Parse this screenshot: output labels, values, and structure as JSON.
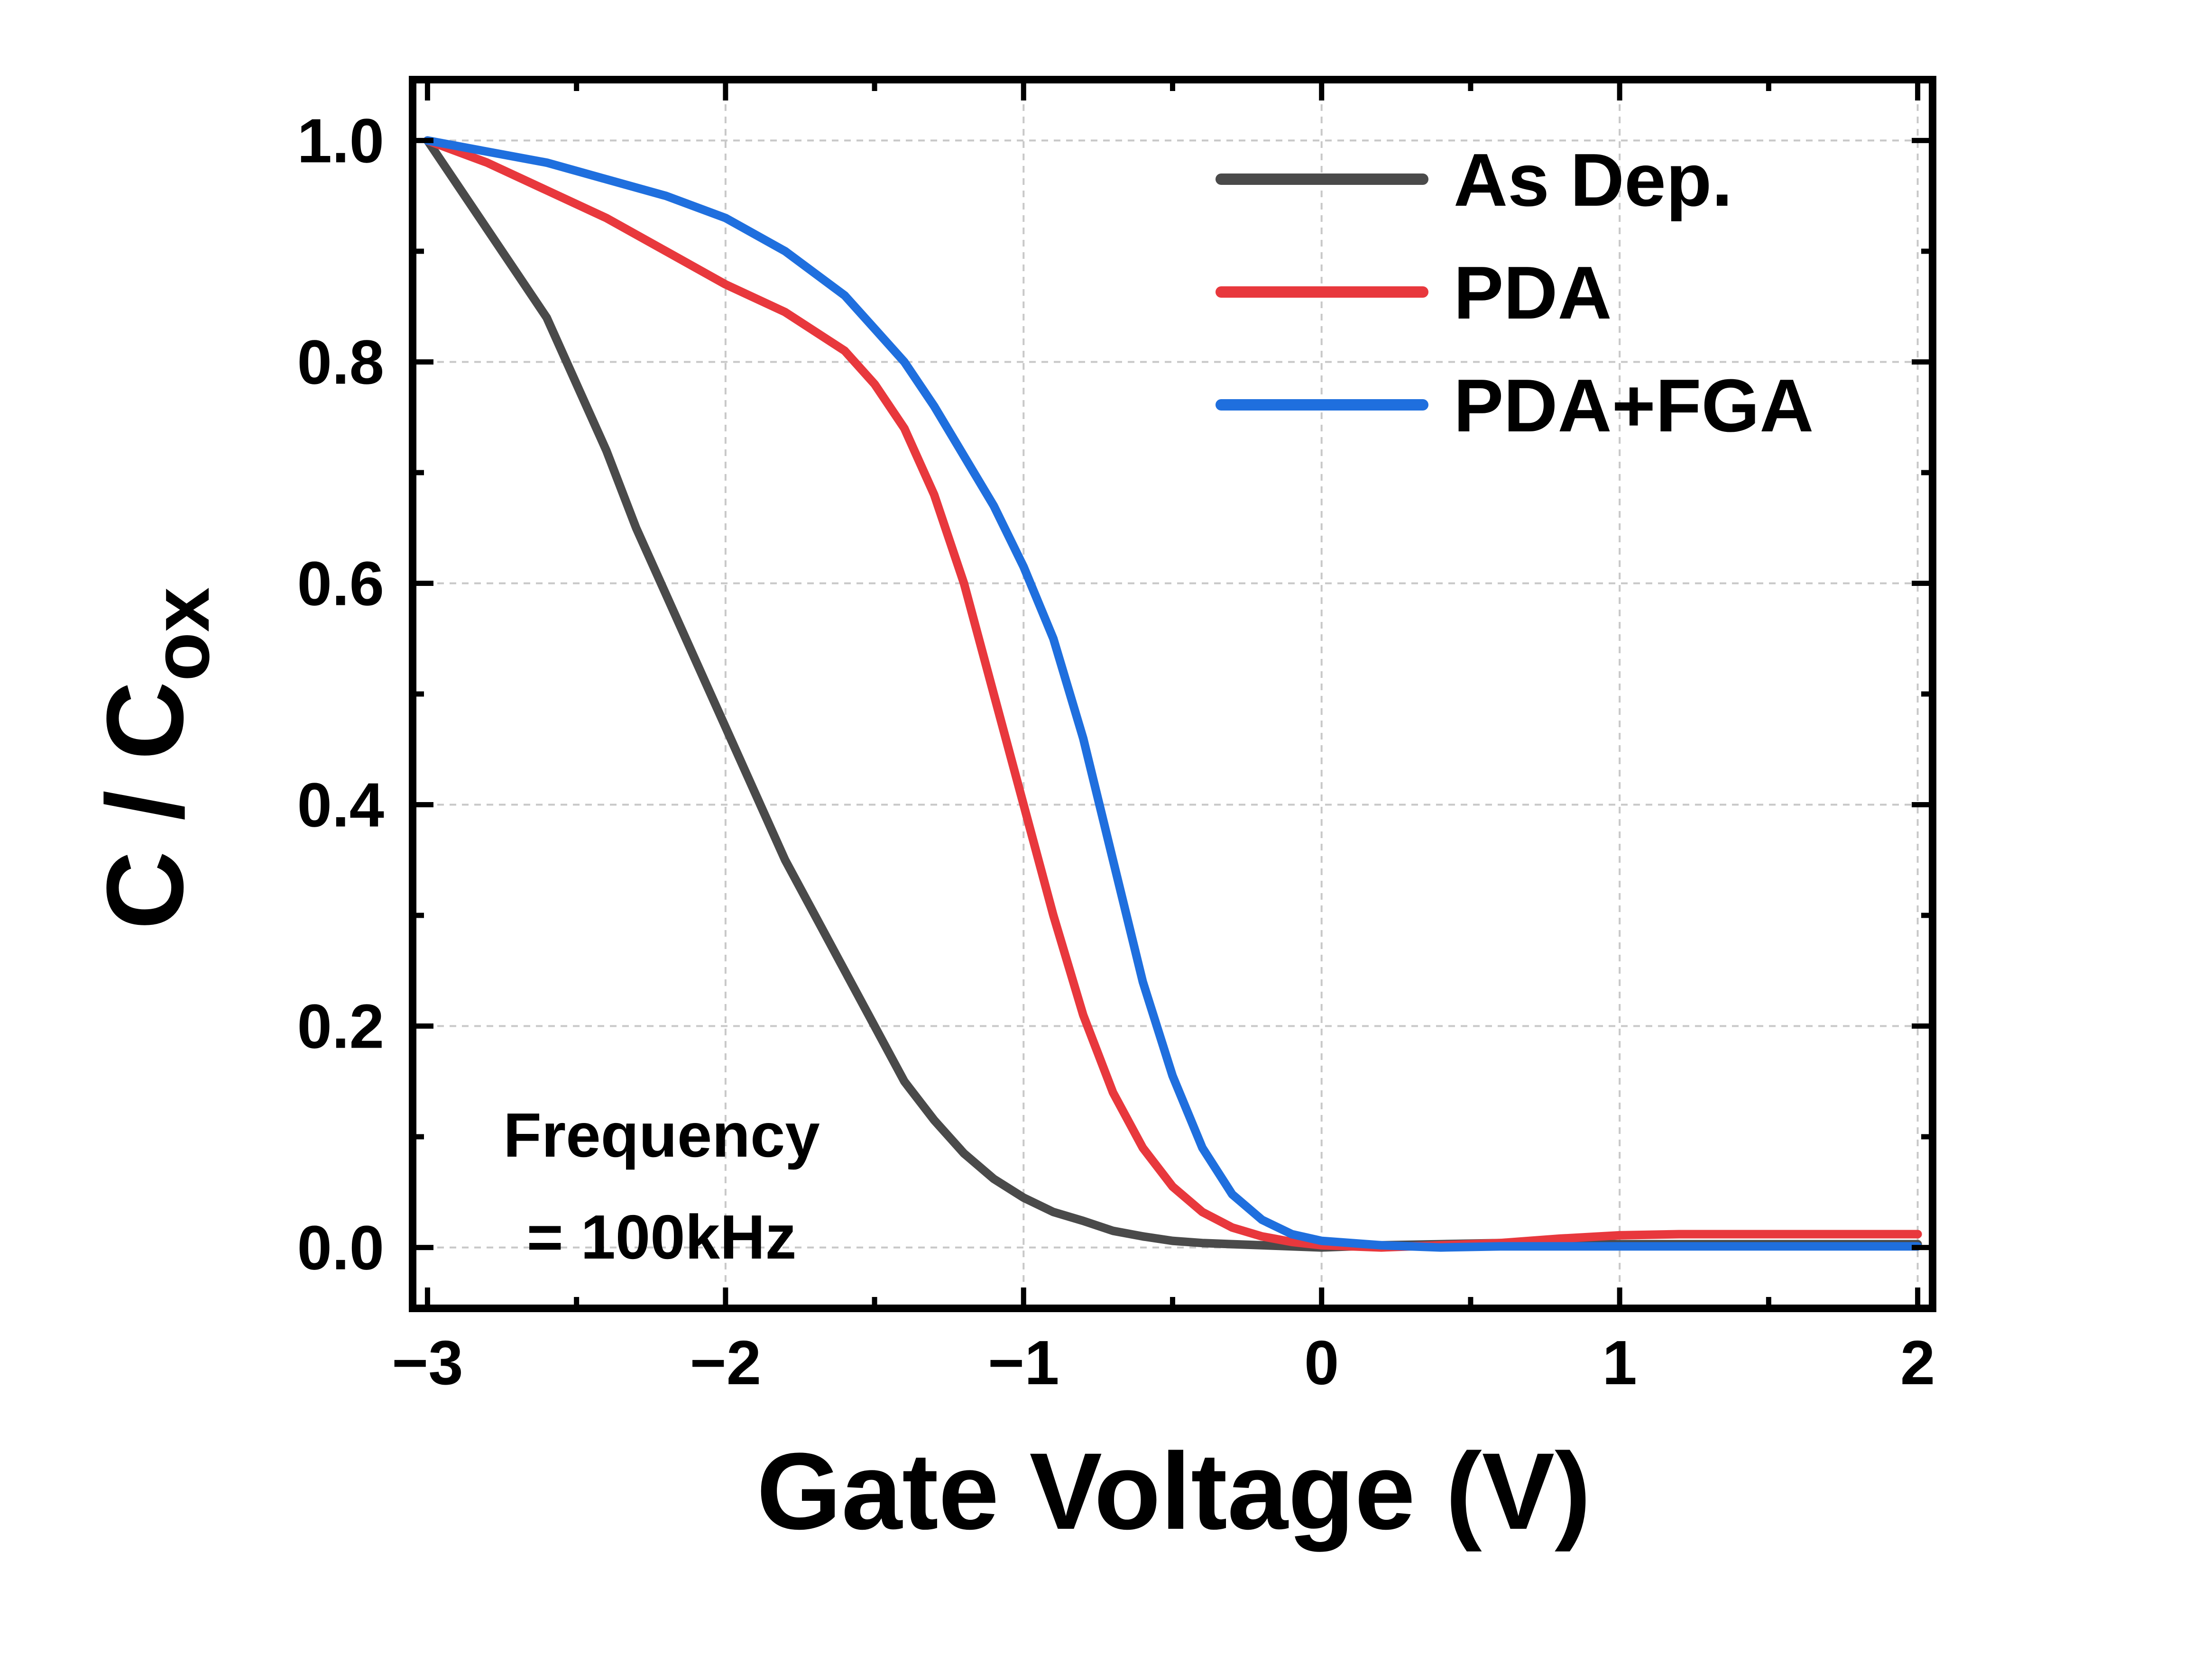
{
  "chart_data": {
    "type": "line",
    "xlabel": "Gate Voltage (V)",
    "ylabel": {
      "main": "C / C",
      "sub": "ox"
    },
    "xlim": [
      -3.05,
      2.05
    ],
    "ylim": [
      -0.055,
      1.055
    ],
    "xticks": [
      -3,
      -2,
      -1,
      0,
      1,
      2
    ],
    "xtick_labels": [
      "−3",
      "−2",
      "−1",
      "0",
      "1",
      "2"
    ],
    "yticks": [
      0.0,
      0.2,
      0.4,
      0.6,
      0.8,
      1.0
    ],
    "ytick_labels": [
      "0.0",
      "0.2",
      "0.4",
      "0.6",
      "0.8",
      "1.0"
    ],
    "grid": true,
    "legend_position": "top-right",
    "annotation": [
      "Frequency",
      "= 100kHz"
    ],
    "series": [
      {
        "name": "As Dep.",
        "color": "#4a4a4a",
        "points": [
          [
            -3.0,
            1.0
          ],
          [
            -2.9,
            0.96
          ],
          [
            -2.8,
            0.92
          ],
          [
            -2.7,
            0.88
          ],
          [
            -2.6,
            0.84
          ],
          [
            -2.5,
            0.78
          ],
          [
            -2.4,
            0.72
          ],
          [
            -2.3,
            0.65
          ],
          [
            -2.2,
            0.59
          ],
          [
            -2.1,
            0.53
          ],
          [
            -2.0,
            0.47
          ],
          [
            -1.9,
            0.41
          ],
          [
            -1.8,
            0.35
          ],
          [
            -1.7,
            0.3
          ],
          [
            -1.6,
            0.25
          ],
          [
            -1.5,
            0.2
          ],
          [
            -1.4,
            0.15
          ],
          [
            -1.3,
            0.115
          ],
          [
            -1.2,
            0.085
          ],
          [
            -1.1,
            0.062
          ],
          [
            -1.0,
            0.045
          ],
          [
            -0.9,
            0.032
          ],
          [
            -0.8,
            0.024
          ],
          [
            -0.7,
            0.015
          ],
          [
            -0.6,
            0.01
          ],
          [
            -0.5,
            0.006
          ],
          [
            -0.4,
            0.004
          ],
          [
            -0.3,
            0.003
          ],
          [
            -0.2,
            0.002
          ],
          [
            -0.1,
            0.001
          ],
          [
            0.0,
            0.0
          ],
          [
            0.2,
            0.002
          ],
          [
            0.4,
            0.003
          ],
          [
            0.6,
            0.004
          ],
          [
            0.8,
            0.003
          ],
          [
            1.0,
            0.003
          ],
          [
            1.5,
            0.003
          ],
          [
            2.0,
            0.003
          ]
        ]
      },
      {
        "name": "PDA",
        "color": "#e8383d",
        "points": [
          [
            -3.0,
            1.0
          ],
          [
            -2.8,
            0.98
          ],
          [
            -2.6,
            0.955
          ],
          [
            -2.4,
            0.93
          ],
          [
            -2.2,
            0.9
          ],
          [
            -2.0,
            0.87
          ],
          [
            -1.8,
            0.845
          ],
          [
            -1.6,
            0.81
          ],
          [
            -1.5,
            0.78
          ],
          [
            -1.4,
            0.74
          ],
          [
            -1.3,
            0.68
          ],
          [
            -1.2,
            0.6
          ],
          [
            -1.1,
            0.5
          ],
          [
            -1.0,
            0.4
          ],
          [
            -0.9,
            0.3
          ],
          [
            -0.8,
            0.21
          ],
          [
            -0.7,
            0.14
          ],
          [
            -0.6,
            0.09
          ],
          [
            -0.5,
            0.055
          ],
          [
            -0.4,
            0.032
          ],
          [
            -0.3,
            0.018
          ],
          [
            -0.2,
            0.01
          ],
          [
            -0.1,
            0.005
          ],
          [
            0.0,
            0.002
          ],
          [
            0.2,
            0.0
          ],
          [
            0.4,
            0.002
          ],
          [
            0.6,
            0.004
          ],
          [
            0.8,
            0.008
          ],
          [
            1.0,
            0.011
          ],
          [
            1.2,
            0.012
          ],
          [
            1.5,
            0.012
          ],
          [
            2.0,
            0.012
          ]
        ]
      },
      {
        "name": "PDA+FGA",
        "color": "#1f6fde",
        "points": [
          [
            -3.0,
            1.0
          ],
          [
            -2.8,
            0.99
          ],
          [
            -2.6,
            0.98
          ],
          [
            -2.4,
            0.965
          ],
          [
            -2.2,
            0.95
          ],
          [
            -2.0,
            0.93
          ],
          [
            -1.8,
            0.9
          ],
          [
            -1.6,
            0.86
          ],
          [
            -1.5,
            0.83
          ],
          [
            -1.4,
            0.8
          ],
          [
            -1.3,
            0.76
          ],
          [
            -1.2,
            0.715
          ],
          [
            -1.1,
            0.67
          ],
          [
            -1.0,
            0.615
          ],
          [
            -0.9,
            0.55
          ],
          [
            -0.8,
            0.46
          ],
          [
            -0.7,
            0.35
          ],
          [
            -0.6,
            0.24
          ],
          [
            -0.5,
            0.155
          ],
          [
            -0.4,
            0.09
          ],
          [
            -0.3,
            0.048
          ],
          [
            -0.2,
            0.025
          ],
          [
            -0.1,
            0.012
          ],
          [
            0.0,
            0.006
          ],
          [
            0.2,
            0.002
          ],
          [
            0.4,
            0.0
          ],
          [
            0.6,
            0.001
          ],
          [
            1.0,
            0.001
          ],
          [
            1.5,
            0.001
          ],
          [
            2.0,
            0.001
          ]
        ]
      }
    ]
  }
}
